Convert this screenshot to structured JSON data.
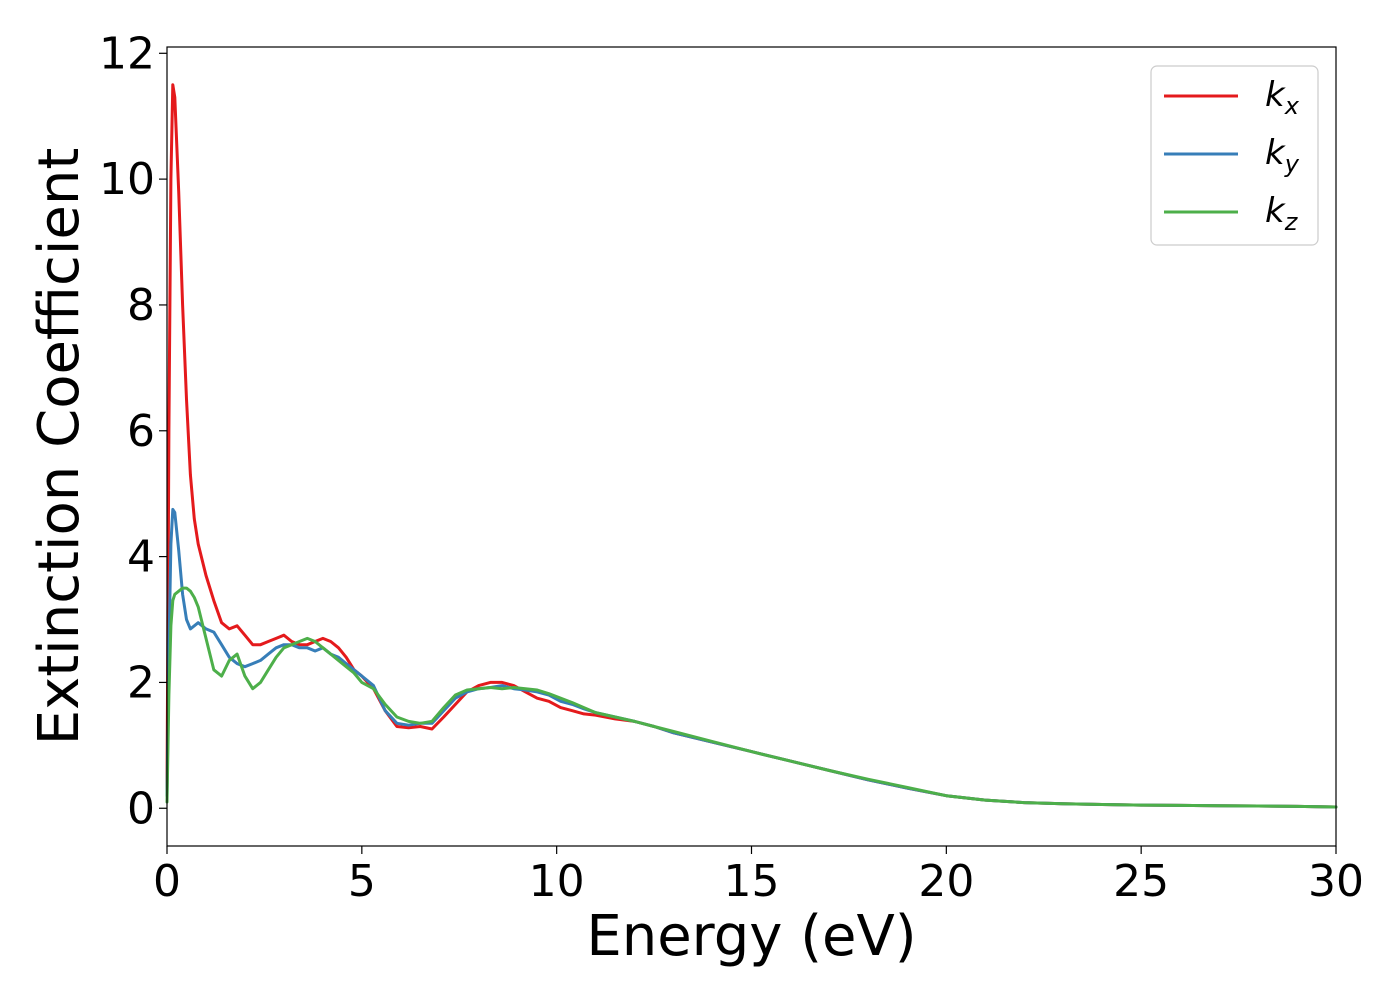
{
  "chart_data": {
    "type": "line",
    "xlabel": "Energy (eV)",
    "ylabel": "Extinction Coefficient",
    "xlim": [
      0,
      30
    ],
    "ylim": [
      -0.6,
      12.1
    ],
    "xticks": [
      0,
      5,
      10,
      15,
      20,
      25,
      30
    ],
    "yticks": [
      0,
      2,
      4,
      6,
      8,
      10,
      12
    ],
    "grid": false,
    "legend_position": "top-right",
    "series": [
      {
        "name": "k_x",
        "label_base": "k",
        "label_sub": "x",
        "color": "#e41a1c",
        "x": [
          0,
          0.05,
          0.1,
          0.15,
          0.2,
          0.3,
          0.4,
          0.5,
          0.6,
          0.7,
          0.8,
          1.0,
          1.2,
          1.4,
          1.6,
          1.8,
          2.0,
          2.2,
          2.4,
          2.6,
          2.8,
          3.0,
          3.2,
          3.4,
          3.6,
          3.8,
          4.0,
          4.2,
          4.4,
          4.6,
          4.8,
          5.0,
          5.3,
          5.6,
          5.9,
          6.2,
          6.5,
          6.8,
          7.1,
          7.4,
          7.7,
          8.0,
          8.3,
          8.6,
          8.9,
          9.2,
          9.5,
          9.8,
          10.1,
          10.4,
          10.7,
          11.0,
          11.5,
          12.0,
          12.5,
          13.0,
          14.0,
          15.0,
          16.0,
          17.0,
          18.0,
          19.0,
          20.0,
          21.0,
          22.0,
          23.0,
          24.0,
          25.0,
          26.0,
          27.0,
          28.0,
          29.0,
          30.0
        ],
        "y": [
          0.3,
          6.0,
          10.0,
          11.5,
          11.3,
          9.8,
          8.0,
          6.5,
          5.3,
          4.6,
          4.2,
          3.7,
          3.3,
          2.95,
          2.85,
          2.9,
          2.75,
          2.6,
          2.6,
          2.65,
          2.7,
          2.75,
          2.65,
          2.6,
          2.6,
          2.65,
          2.7,
          2.65,
          2.55,
          2.4,
          2.2,
          2.1,
          1.9,
          1.55,
          1.3,
          1.28,
          1.3,
          1.26,
          1.45,
          1.65,
          1.85,
          1.95,
          2.0,
          2.0,
          1.95,
          1.85,
          1.75,
          1.7,
          1.6,
          1.55,
          1.5,
          1.48,
          1.42,
          1.38,
          1.3,
          1.2,
          1.05,
          0.9,
          0.75,
          0.6,
          0.45,
          0.32,
          0.2,
          0.13,
          0.09,
          0.07,
          0.06,
          0.05,
          0.045,
          0.04,
          0.035,
          0.03,
          0.02
        ]
      },
      {
        "name": "k_y",
        "label_base": "k",
        "label_sub": "y",
        "color": "#377eb8",
        "x": [
          0,
          0.05,
          0.1,
          0.15,
          0.2,
          0.3,
          0.4,
          0.5,
          0.6,
          0.7,
          0.8,
          1.0,
          1.2,
          1.4,
          1.6,
          1.8,
          2.0,
          2.2,
          2.4,
          2.6,
          2.8,
          3.0,
          3.2,
          3.4,
          3.6,
          3.8,
          4.0,
          4.2,
          4.4,
          4.6,
          4.8,
          5.0,
          5.3,
          5.6,
          5.9,
          6.2,
          6.5,
          6.8,
          7.1,
          7.4,
          7.7,
          8.0,
          8.3,
          8.6,
          8.9,
          9.2,
          9.5,
          9.8,
          10.1,
          10.4,
          10.7,
          11.0,
          11.5,
          12.0,
          12.5,
          13.0,
          14.0,
          15.0,
          16.0,
          17.0,
          18.0,
          19.0,
          20.0,
          21.0,
          22.0,
          23.0,
          24.0,
          25.0,
          26.0,
          27.0,
          28.0,
          29.0,
          30.0
        ],
        "y": [
          0.2,
          2.5,
          4.2,
          4.75,
          4.7,
          4.1,
          3.4,
          3.0,
          2.85,
          2.9,
          2.95,
          2.85,
          2.8,
          2.6,
          2.4,
          2.3,
          2.25,
          2.3,
          2.35,
          2.45,
          2.55,
          2.6,
          2.6,
          2.55,
          2.55,
          2.5,
          2.55,
          2.45,
          2.4,
          2.3,
          2.2,
          2.1,
          1.95,
          1.55,
          1.35,
          1.32,
          1.35,
          1.35,
          1.55,
          1.75,
          1.85,
          1.9,
          1.92,
          1.95,
          1.9,
          1.88,
          1.85,
          1.8,
          1.7,
          1.65,
          1.58,
          1.52,
          1.45,
          1.38,
          1.3,
          1.2,
          1.05,
          0.9,
          0.75,
          0.6,
          0.45,
          0.32,
          0.2,
          0.13,
          0.09,
          0.07,
          0.06,
          0.05,
          0.045,
          0.04,
          0.035,
          0.03,
          0.02
        ]
      },
      {
        "name": "k_z",
        "label_base": "k",
        "label_sub": "z",
        "color": "#4daf4a",
        "x": [
          0,
          0.05,
          0.1,
          0.15,
          0.2,
          0.3,
          0.4,
          0.5,
          0.6,
          0.7,
          0.8,
          1.0,
          1.2,
          1.4,
          1.6,
          1.8,
          2.0,
          2.2,
          2.4,
          2.6,
          2.8,
          3.0,
          3.2,
          3.4,
          3.6,
          3.8,
          4.0,
          4.2,
          4.4,
          4.6,
          4.8,
          5.0,
          5.3,
          5.6,
          5.9,
          6.2,
          6.5,
          6.8,
          7.1,
          7.4,
          7.7,
          8.0,
          8.3,
          8.6,
          8.9,
          9.2,
          9.5,
          9.8,
          10.1,
          10.4,
          10.7,
          11.0,
          11.5,
          12.0,
          12.5,
          13.0,
          14.0,
          15.0,
          16.0,
          17.0,
          18.0,
          19.0,
          20.0,
          21.0,
          22.0,
          23.0,
          24.0,
          25.0,
          26.0,
          27.0,
          28.0,
          29.0,
          30.0
        ],
        "y": [
          0.1,
          1.8,
          2.9,
          3.3,
          3.4,
          3.45,
          3.5,
          3.5,
          3.45,
          3.35,
          3.2,
          2.7,
          2.2,
          2.1,
          2.35,
          2.45,
          2.1,
          1.9,
          2.0,
          2.2,
          2.4,
          2.55,
          2.6,
          2.65,
          2.7,
          2.65,
          2.55,
          2.45,
          2.35,
          2.25,
          2.15,
          2.0,
          1.9,
          1.65,
          1.45,
          1.38,
          1.35,
          1.38,
          1.6,
          1.8,
          1.88,
          1.9,
          1.92,
          1.9,
          1.92,
          1.9,
          1.88,
          1.82,
          1.75,
          1.68,
          1.6,
          1.52,
          1.45,
          1.38,
          1.3,
          1.22,
          1.06,
          0.9,
          0.75,
          0.6,
          0.46,
          0.33,
          0.2,
          0.13,
          0.09,
          0.07,
          0.06,
          0.05,
          0.045,
          0.04,
          0.035,
          0.03,
          0.02
        ]
      }
    ]
  }
}
